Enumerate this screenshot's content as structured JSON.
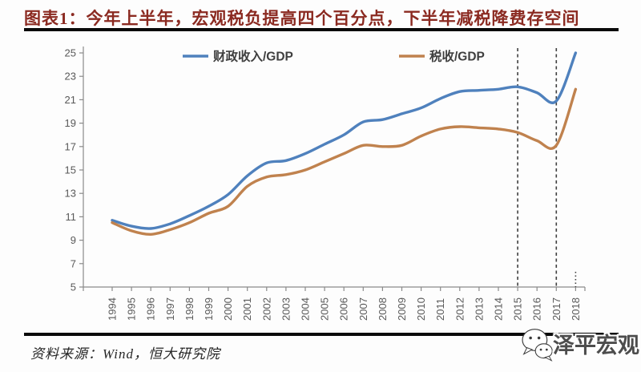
{
  "page": {
    "title": "图表1：今年上半年，宏观税负提高四个百分点，下半年减税降费存空间",
    "source": "资料来源：Wind，恒大研究院",
    "watermark": "泽平宏观"
  },
  "colors": {
    "title_red": "#8b2a21",
    "fiscal_blue": "#4f81bd",
    "tax_orange": "#c0824e",
    "axis_gray": "#8a8a8a",
    "tick_label_gray": "#595959",
    "legend_text": "#3f3f3f",
    "dashed_line": "#3f3f3f"
  },
  "chart_data": {
    "type": "line",
    "x": [
      1994,
      1995,
      1996,
      1997,
      1998,
      1999,
      2000,
      2001,
      2002,
      2003,
      2004,
      2005,
      2006,
      2007,
      2008,
      2009,
      2010,
      2011,
      2012,
      2013,
      2014,
      2015,
      2016,
      2017,
      2018
    ],
    "series": [
      {
        "name": "财政收入/GDP",
        "color": "#4f81bd",
        "values": [
          10.7,
          10.2,
          10.0,
          10.4,
          11.1,
          11.9,
          12.9,
          14.5,
          15.6,
          15.8,
          16.4,
          17.2,
          18.0,
          19.1,
          19.3,
          19.8,
          20.3,
          21.1,
          21.7,
          21.8,
          21.9,
          22.1,
          21.6,
          20.9,
          25.0
        ]
      },
      {
        "name": "税收/GDP",
        "color": "#c0824e",
        "values": [
          10.5,
          9.8,
          9.5,
          9.9,
          10.5,
          11.3,
          11.9,
          13.6,
          14.4,
          14.6,
          15.0,
          15.7,
          16.4,
          17.1,
          17.0,
          17.1,
          17.9,
          18.5,
          18.7,
          18.6,
          18.5,
          18.2,
          17.5,
          17.1,
          21.9
        ]
      }
    ],
    "ylim": [
      5,
      25
    ],
    "yticks": [
      5,
      7,
      9,
      11,
      13,
      15,
      17,
      19,
      21,
      23,
      25
    ],
    "grid": false,
    "legend_position": "top-center",
    "dashed_vlines_at_years": [
      2015,
      2017
    ],
    "dotted_mark_at_year": 2018
  }
}
